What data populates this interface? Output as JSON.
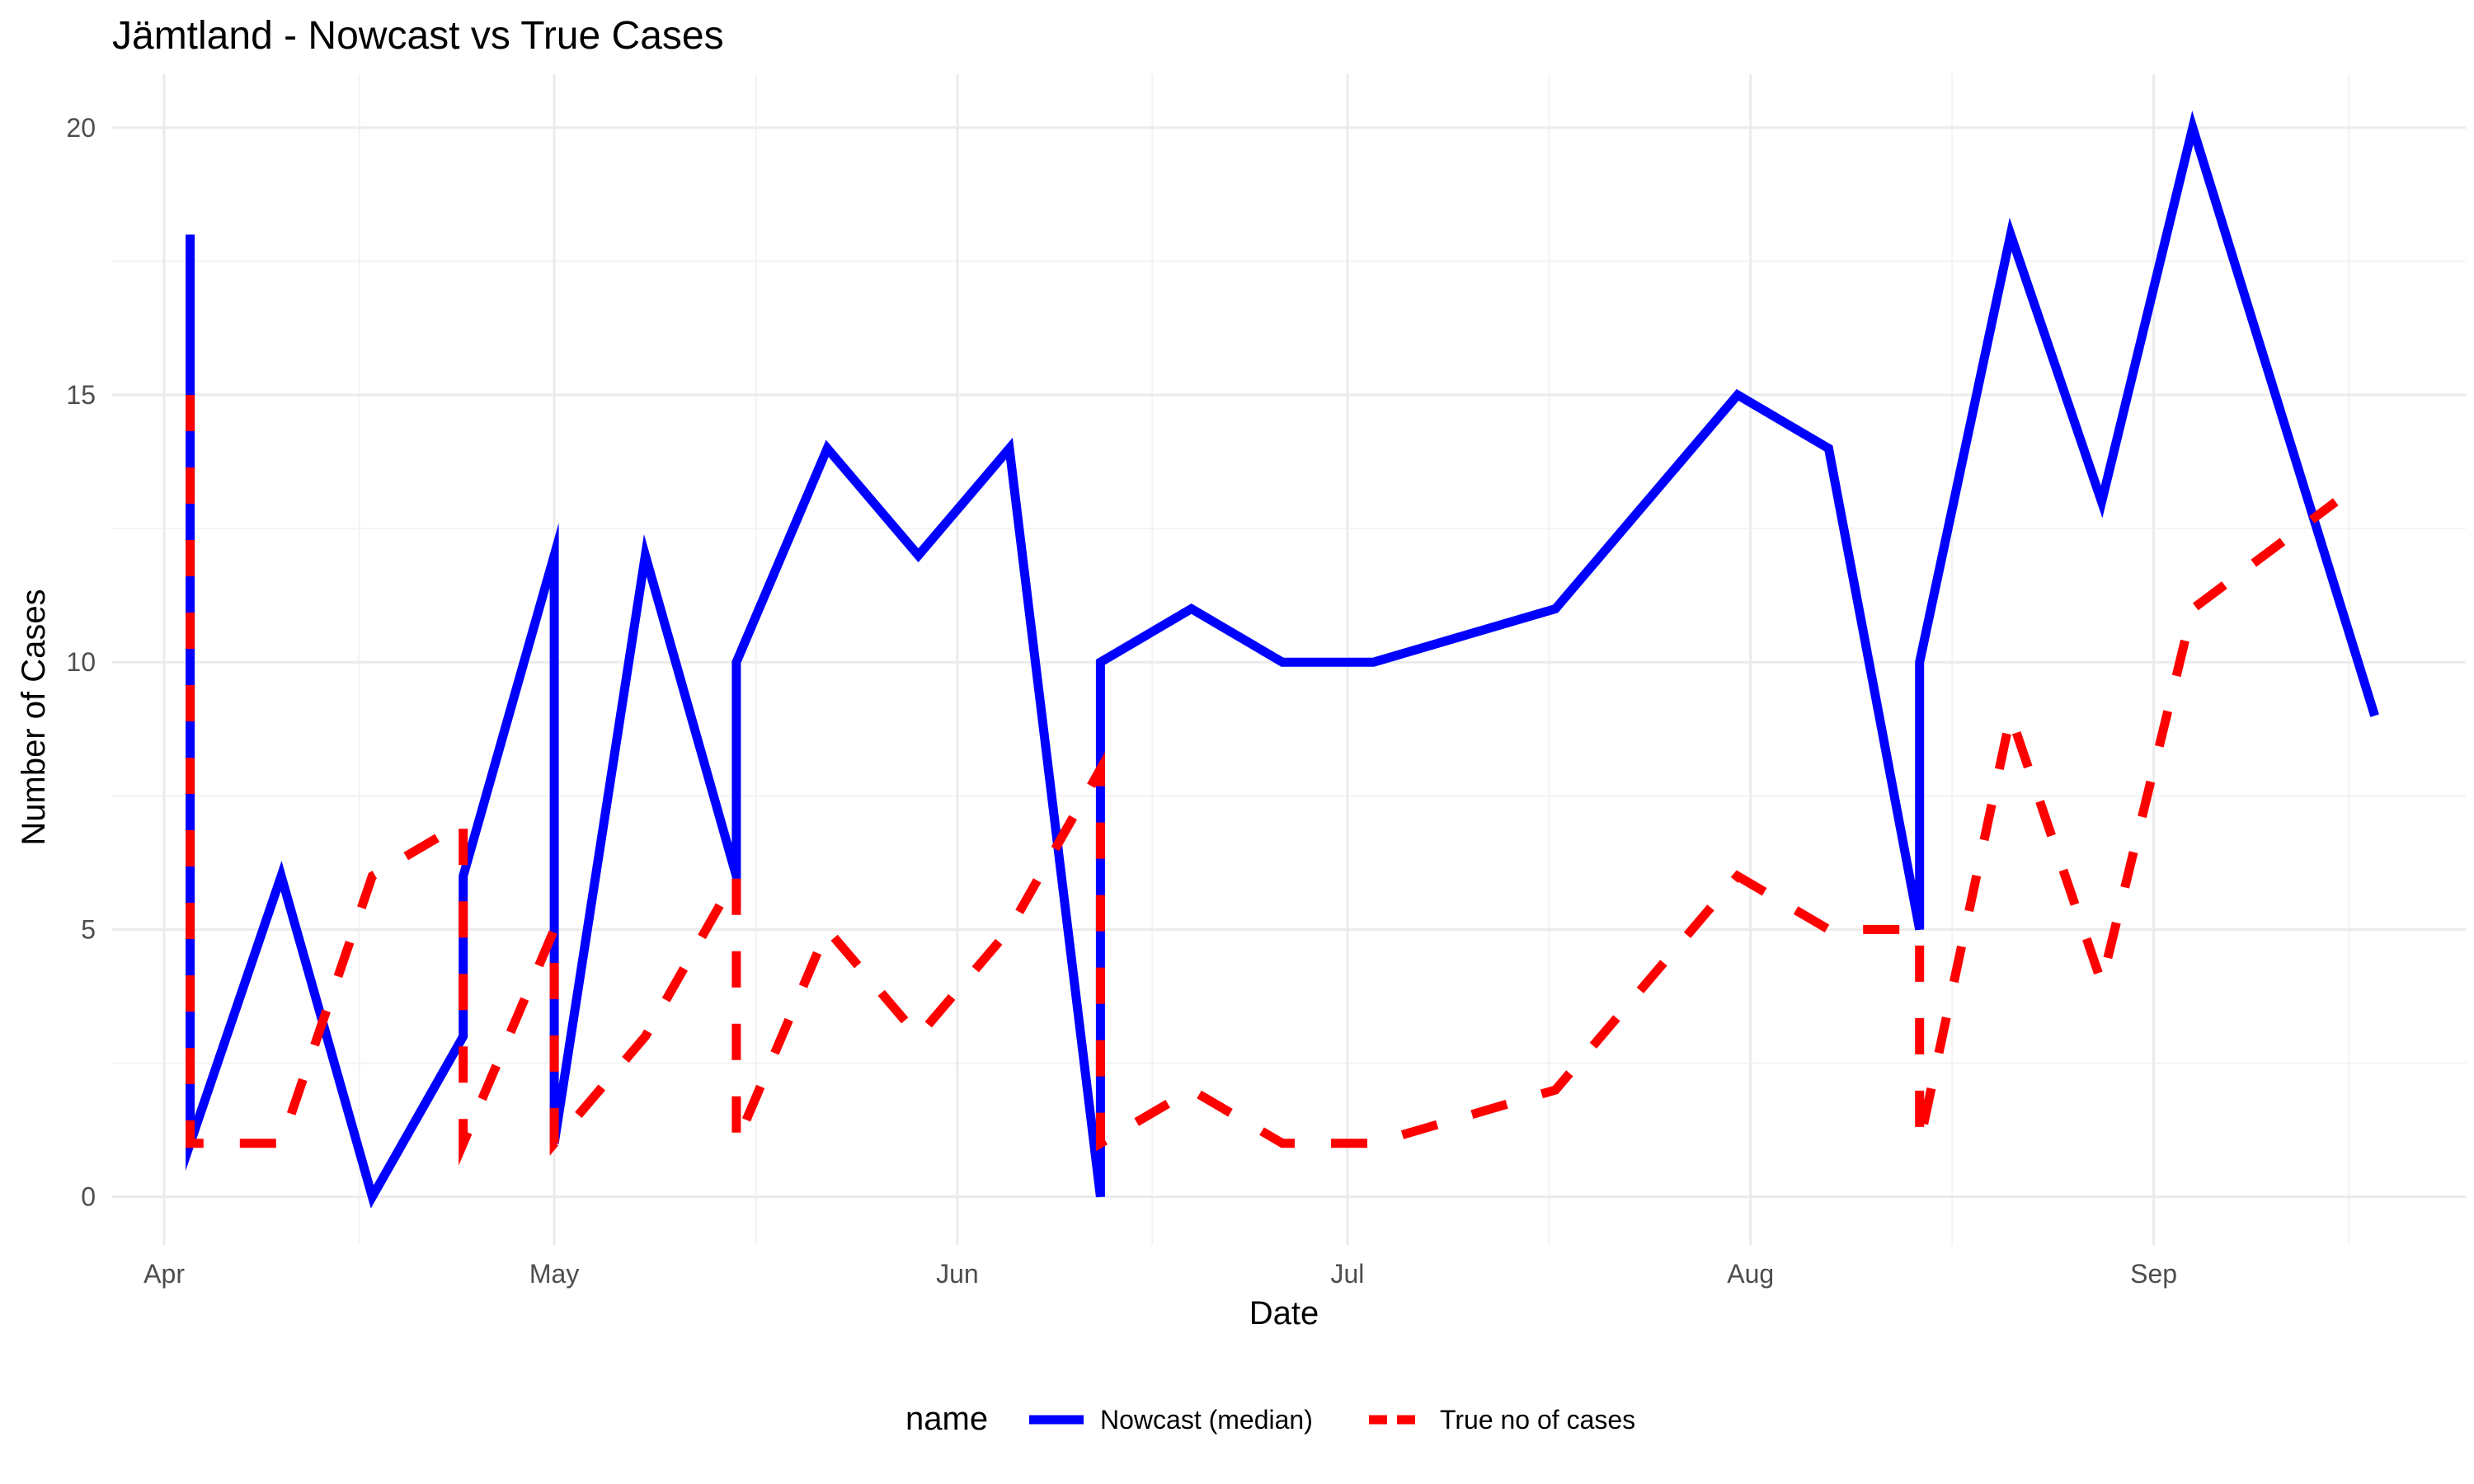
{
  "chart_data": {
    "type": "line",
    "title": "Jämtland - Nowcast vs True Cases",
    "xlabel": "Date",
    "ylabel": "Number of Cases",
    "x_axis_type": "date",
    "xlim": [
      "2023-03-28",
      "2023-09-25"
    ],
    "ylim": [
      -0.9,
      21.0
    ],
    "x_ticks": [
      {
        "date": "2023-04-01",
        "label": "Apr"
      },
      {
        "date": "2023-05-01",
        "label": "May"
      },
      {
        "date": "2023-06-01",
        "label": "Jun"
      },
      {
        "date": "2023-07-01",
        "label": "Jul"
      },
      {
        "date": "2023-08-01",
        "label": "Aug"
      },
      {
        "date": "2023-09-01",
        "label": "Sep"
      }
    ],
    "y_ticks": [
      0,
      5,
      10,
      15,
      20
    ],
    "grid": true,
    "legend": {
      "position": "bottom",
      "title": "name"
    },
    "series": [
      {
        "name": "Nowcast (median)",
        "color": "#0000ff",
        "dash": "solid",
        "points": [
          [
            "2023-04-03",
            18
          ],
          [
            "2023-04-03",
            1
          ],
          [
            "2023-04-10",
            6
          ],
          [
            "2023-04-17",
            0
          ],
          [
            "2023-04-24",
            3
          ],
          [
            "2023-04-24",
            6
          ],
          [
            "2023-05-01",
            12
          ],
          [
            "2023-05-01",
            1
          ],
          [
            "2023-05-08",
            12
          ],
          [
            "2023-05-15",
            6
          ],
          [
            "2023-05-15",
            10
          ],
          [
            "2023-05-22",
            14
          ],
          [
            "2023-05-29",
            12
          ],
          [
            "2023-06-05",
            14
          ],
          [
            "2023-06-12",
            0
          ],
          [
            "2023-06-12",
            10
          ],
          [
            "2023-06-19",
            11
          ],
          [
            "2023-06-26",
            10
          ],
          [
            "2023-07-03",
            10
          ],
          [
            "2023-07-17",
            11
          ],
          [
            "2023-07-31",
            15
          ],
          [
            "2023-08-07",
            14
          ],
          [
            "2023-08-14",
            5
          ],
          [
            "2023-08-14",
            10
          ],
          [
            "2023-08-21",
            18
          ],
          [
            "2023-08-28",
            13
          ],
          [
            "2023-09-04",
            20
          ],
          [
            "2023-09-18",
            9
          ]
        ]
      },
      {
        "name": "True no of cases",
        "color": "#ff0000",
        "dash": "dashed",
        "points": [
          [
            "2023-04-03",
            15
          ],
          [
            "2023-04-03",
            1
          ],
          [
            "2023-04-10",
            1
          ],
          [
            "2023-04-17",
            6
          ],
          [
            "2023-04-24",
            7
          ],
          [
            "2023-04-24",
            1
          ],
          [
            "2023-05-01",
            5
          ],
          [
            "2023-05-01",
            1
          ],
          [
            "2023-05-08",
            3
          ],
          [
            "2023-05-15",
            6
          ],
          [
            "2023-05-15",
            1
          ],
          [
            "2023-05-22",
            5
          ],
          [
            "2023-05-29",
            3
          ],
          [
            "2023-06-05",
            5
          ],
          [
            "2023-06-12",
            8
          ],
          [
            "2023-06-12",
            1
          ],
          [
            "2023-06-19",
            2
          ],
          [
            "2023-06-26",
            1
          ],
          [
            "2023-07-03",
            1
          ],
          [
            "2023-07-17",
            2
          ],
          [
            "2023-07-31",
            6
          ],
          [
            "2023-08-07",
            5
          ],
          [
            "2023-08-14",
            5
          ],
          [
            "2023-08-14",
            1
          ],
          [
            "2023-08-21",
            9
          ],
          [
            "2023-08-28",
            4
          ],
          [
            "2023-09-04",
            11
          ],
          [
            "2023-09-15",
            13
          ]
        ]
      }
    ]
  }
}
